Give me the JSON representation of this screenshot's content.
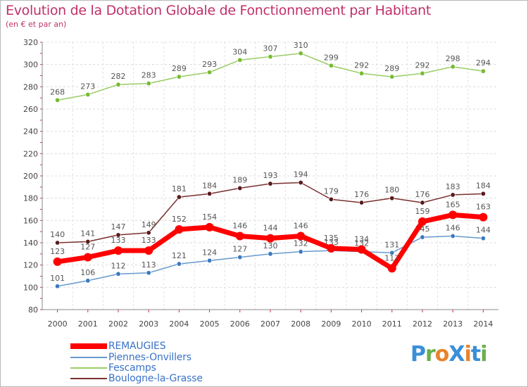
{
  "header": {
    "title": "Evolution de la Dotation Globale de Fonctionnement par Habitant",
    "subtitle": "(en € et par an)"
  },
  "logo": {
    "text": "ProXiti",
    "colors": [
      "#3a8fd8",
      "#6ab04c",
      "#e8842c",
      "#3a8fd8",
      "#e8842c",
      "#3a8fd8",
      "#6ab04c"
    ]
  },
  "chart_data": {
    "type": "line",
    "x": [
      "2000",
      "2001",
      "2002",
      "2003",
      "2004",
      "2005",
      "2006",
      "2007",
      "2008",
      "2009",
      "2010",
      "2011",
      "2012",
      "2013",
      "2014"
    ],
    "ylim": [
      80,
      320
    ],
    "yticks": [
      80,
      100,
      120,
      140,
      160,
      180,
      200,
      220,
      240,
      260,
      280,
      300,
      320
    ],
    "grid": true,
    "legend_position": "bottom-left",
    "series": [
      {
        "name": "Fescamps",
        "color": "#99cc66",
        "marker": "#77bb33",
        "emphasis": false,
        "values": [
          268,
          273,
          282,
          283,
          289,
          293,
          304,
          307,
          310,
          299,
          292,
          289,
          292,
          298,
          294
        ],
        "labels": [
          "268",
          "273",
          "282",
          "283",
          "289",
          "293",
          "304",
          "307",
          "310",
          "299",
          "292",
          "289",
          "292",
          "298",
          "294"
        ]
      },
      {
        "name": "Boulogne-la-Grasse",
        "color": "#7a3030",
        "marker": "#5a1a1a",
        "emphasis": false,
        "values": [
          140,
          141,
          147,
          149,
          181,
          184,
          189,
          193,
          194,
          179,
          176,
          180,
          176,
          183,
          184
        ],
        "labels": [
          "140",
          "141",
          "147",
          "149",
          "181",
          "184",
          "189",
          "193",
          "194",
          "179",
          "176",
          "180",
          "176",
          "183",
          "184"
        ]
      },
      {
        "name": "Piennes-Onvillers",
        "color": "#6699cc",
        "marker": "#3a7ac0",
        "emphasis": false,
        "values": [
          101,
          106,
          112,
          113,
          121,
          124,
          127,
          130,
          132,
          133,
          132,
          131,
          145,
          146,
          144
        ],
        "labels": [
          "101",
          "106",
          "112",
          "113",
          "121",
          "124",
          "127",
          "130",
          "132",
          "133",
          "132",
          "131",
          "145",
          "146",
          "144"
        ]
      },
      {
        "name": "REMAUGIES",
        "color": "#ff0000",
        "marker": "#ff0000",
        "emphasis": true,
        "values": [
          123,
          127,
          133,
          133,
          152,
          154,
          146,
          144,
          146,
          135,
          134,
          117,
          159,
          165,
          163
        ],
        "labels": [
          "123",
          "127",
          "133",
          "133",
          "152",
          "154",
          "146",
          "144",
          "146",
          "135",
          "134",
          "117",
          "159",
          "165",
          "163"
        ]
      }
    ],
    "legend": [
      {
        "name": "REMAUGIES",
        "color": "#ff0000",
        "emphasis": true
      },
      {
        "name": "Piennes-Onvillers",
        "color": "#6699cc",
        "emphasis": false
      },
      {
        "name": "Fescamps",
        "color": "#99cc66",
        "emphasis": false
      },
      {
        "name": "Boulogne-la-Grasse",
        "color": "#7a3030",
        "emphasis": false
      }
    ]
  }
}
